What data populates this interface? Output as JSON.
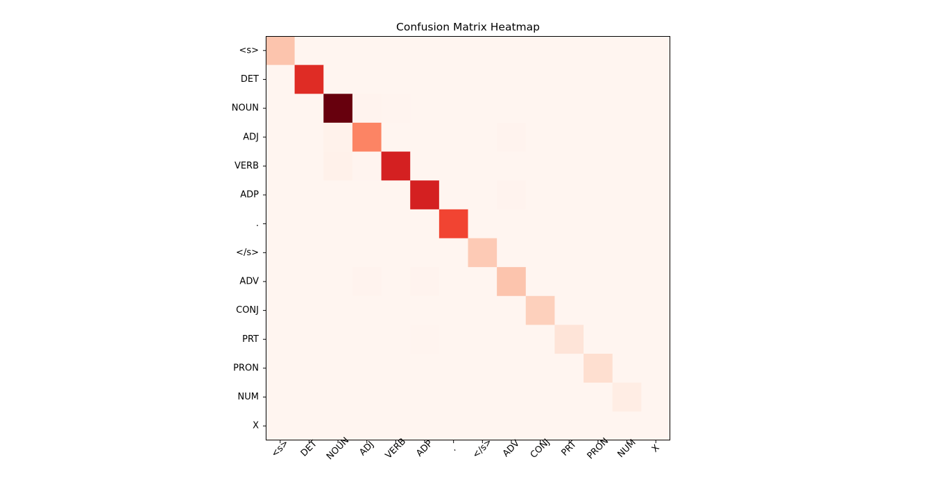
{
  "chart_data": {
    "type": "heatmap",
    "title": "Confusion Matrix Heatmap",
    "xlabel": "",
    "ylabel": "",
    "colormap": "Reds",
    "x_labels": [
      "<s>",
      "DET",
      "NOUN",
      "ADJ",
      "VERB",
      "ADP",
      ".",
      "</s>",
      "ADV",
      "CONJ",
      "PRT",
      "PRON",
      "NUM",
      "X"
    ],
    "y_labels": [
      "<s>",
      "DET",
      "NOUN",
      "ADJ",
      "VERB",
      "ADP",
      ".",
      "</s>",
      "ADV",
      "CONJ",
      "PRT",
      "PRON",
      "NUM",
      "X"
    ],
    "x_tick_rotation": 45,
    "grid": false,
    "values": [
      [
        0.22,
        0,
        0,
        0,
        0,
        0,
        0,
        0,
        0,
        0,
        0,
        0,
        0,
        0
      ],
      [
        0,
        0.68,
        0,
        0,
        0,
        0,
        0,
        0,
        0,
        0,
        0,
        0,
        0,
        0
      ],
      [
        0,
        0,
        1.0,
        0.01,
        0.005,
        0,
        0,
        0,
        0,
        0,
        0,
        0,
        0,
        0
      ],
      [
        0,
        0,
        0.02,
        0.42,
        0,
        0,
        0,
        0,
        0.01,
        0,
        0,
        0,
        0,
        0
      ],
      [
        0,
        0,
        0.025,
        0.005,
        0.72,
        0,
        0,
        0,
        0,
        0,
        0,
        0,
        0,
        0
      ],
      [
        0,
        0,
        0,
        0,
        0,
        0.72,
        0,
        0,
        0.01,
        0,
        0,
        0,
        0,
        0
      ],
      [
        0,
        0,
        0,
        0,
        0,
        0,
        0.6,
        0,
        0,
        0,
        0,
        0,
        0,
        0
      ],
      [
        0,
        0,
        0,
        0,
        0,
        0,
        0,
        0.2,
        0,
        0,
        0,
        0,
        0,
        0
      ],
      [
        0,
        0,
        0,
        0.01,
        0,
        0.01,
        0,
        0,
        0.22,
        0,
        0,
        0,
        0,
        0
      ],
      [
        0,
        0,
        0,
        0,
        0,
        0,
        0,
        0,
        0,
        0.18,
        0,
        0,
        0,
        0
      ],
      [
        0,
        0,
        0,
        0,
        0,
        0.005,
        0,
        0,
        0,
        0,
        0.1,
        0,
        0,
        0
      ],
      [
        0,
        0,
        0,
        0,
        0,
        0,
        0,
        0,
        0,
        0,
        0,
        0.13,
        0,
        0
      ],
      [
        0,
        0,
        0,
        0,
        0,
        0,
        0,
        0,
        0,
        0,
        0,
        0,
        0.05,
        0
      ],
      [
        0,
        0,
        0,
        0,
        0,
        0,
        0,
        0,
        0,
        0,
        0,
        0,
        0,
        0
      ]
    ],
    "vmin": 0,
    "vmax": 1.0
  }
}
